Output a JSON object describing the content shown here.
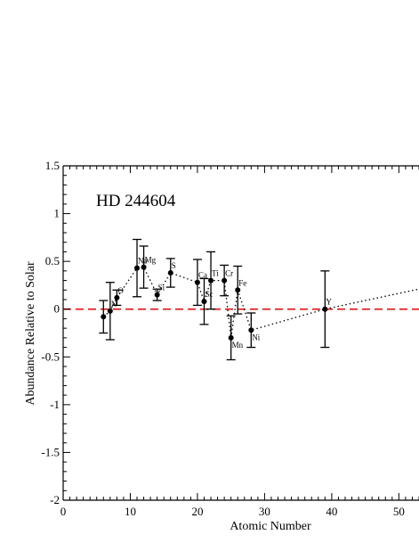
{
  "chart_data": {
    "type": "scatter",
    "title": "HD 244604",
    "xlabel": "Atomic Number",
    "ylabel": "Abundance Relative to Solar",
    "xlim": [
      0,
      53
    ],
    "ylim": [
      -2,
      1.5
    ],
    "x_ticks": [
      "0",
      "10",
      "20",
      "30",
      "40",
      "50"
    ],
    "y_ticks": [
      "-2",
      "-1.5",
      "-1",
      "-0.5",
      "0",
      "0.5",
      "1",
      "1.5"
    ],
    "grid": false,
    "reference_line": {
      "y": 0,
      "color": "#e02020",
      "style": "dashed"
    },
    "series": [
      {
        "points": [
          {
            "label": "",
            "x": 6,
            "y": -0.08,
            "err": 0.17
          },
          {
            "label": "N",
            "x": 7,
            "y": -0.02,
            "err": 0.3
          },
          {
            "label": "O",
            "x": 8,
            "y": 0.12,
            "err": 0.08
          },
          {
            "label": "Na",
            "x": 11,
            "y": 0.43,
            "err": 0.3
          },
          {
            "label": "Mg",
            "x": 12,
            "y": 0.44,
            "err": 0.22
          },
          {
            "label": "Si",
            "x": 14,
            "y": 0.15,
            "err": 0.06
          },
          {
            "label": "S",
            "x": 16,
            "y": 0.38,
            "err": 0.15
          },
          {
            "label": "Ca",
            "x": 20,
            "y": 0.28,
            "err": 0.24
          },
          {
            "label": "Sc",
            "x": 21,
            "y": 0.08,
            "err": 0.24
          },
          {
            "label": "Ti",
            "x": 22,
            "y": 0.3,
            "err": 0.3
          },
          {
            "label": "Cr",
            "x": 24,
            "y": 0.3,
            "err": 0.16
          },
          {
            "label": "Mn",
            "x": 25,
            "y": -0.3,
            "err": 0.23
          },
          {
            "label": "Fe",
            "x": 26,
            "y": 0.2,
            "err": 0.25
          },
          {
            "label": "Ni",
            "x": 28,
            "y": -0.22,
            "err": 0.18
          },
          {
            "label": "Y",
            "x": 39,
            "y": 0.0,
            "err": 0.4
          }
        ],
        "trend_end": {
          "x": 53,
          "y": 0.21
        }
      }
    ]
  }
}
